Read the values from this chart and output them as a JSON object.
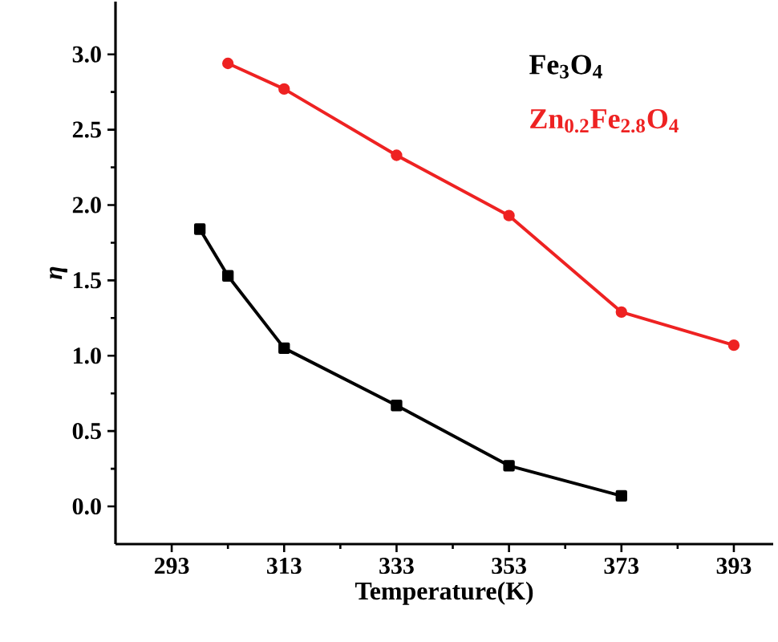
{
  "chart_data": {
    "type": "line",
    "xlabel": "Temperature(K)",
    "ylabel": "η",
    "xlim": [
      283,
      400
    ],
    "ylim": [
      -0.25,
      3.35
    ],
    "xticks": [
      293,
      313,
      333,
      353,
      373,
      393
    ],
    "yticks": [
      {
        "value": 0,
        "label": "0.0"
      },
      {
        "value": 0.5,
        "label": "0.5"
      },
      {
        "value": 1,
        "label": "1.0"
      },
      {
        "value": 1.5,
        "label": "1.5"
      },
      {
        "value": 2,
        "label": "2.0"
      },
      {
        "value": 2.5,
        "label": "2.5"
      },
      {
        "value": 3,
        "label": "3.0"
      }
    ],
    "grid": false,
    "legend": "top right",
    "series": [
      {
        "name": "Fe$_{3}$O$_{4}$",
        "color": "#000000",
        "marker": "square",
        "x": [
          298,
          303,
          313,
          333,
          353,
          373
        ],
        "values": [
          1.84,
          1.53,
          1.05,
          0.67,
          0.27,
          0.07
        ]
      },
      {
        "name": "Zn$_{0.2}$Fe$_{2.8}$O$_{4}$",
        "color": "#ee2222",
        "marker": "circle",
        "x": [
          303,
          313,
          333,
          353,
          373,
          393
        ],
        "values": [
          2.94,
          2.77,
          2.33,
          1.93,
          1.29,
          1.07
        ]
      }
    ]
  }
}
